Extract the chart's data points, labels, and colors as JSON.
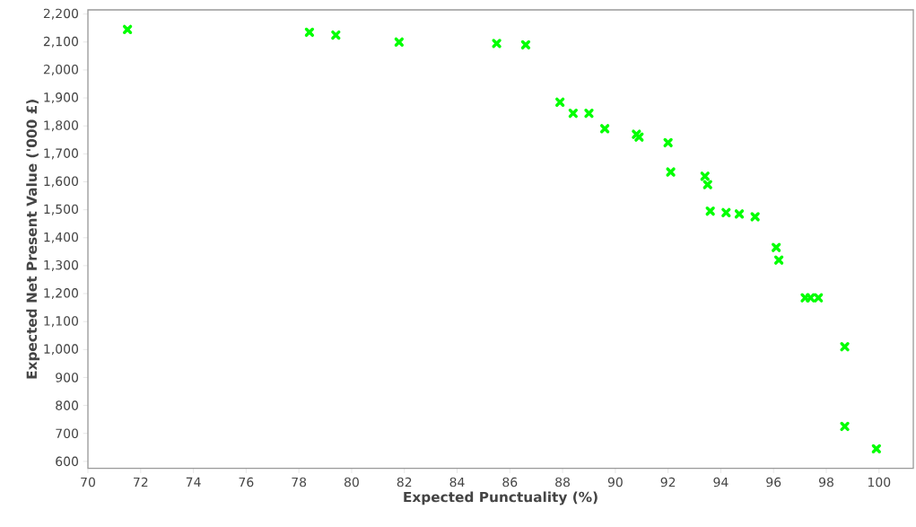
{
  "chart_data": {
    "type": "scatter",
    "xlabel": "Expected Punctuality (%)",
    "ylabel": "Expected Net Present Value ('000 £)",
    "x": [
      71.5,
      78.4,
      79.4,
      81.8,
      85.5,
      86.6,
      87.9,
      88.4,
      89.0,
      89.6,
      90.8,
      90.9,
      92.0,
      92.1,
      93.4,
      93.5,
      93.6,
      94.2,
      94.7,
      95.3,
      96.1,
      96.2,
      97.2,
      97.4,
      97.7,
      98.7,
      98.7,
      99.9
    ],
    "values": [
      2145,
      2135,
      2125,
      2100,
      2095,
      2090,
      1885,
      1845,
      1845,
      1790,
      1770,
      1760,
      1740,
      1635,
      1620,
      1590,
      1495,
      1490,
      1485,
      1475,
      1365,
      1320,
      1185,
      1185,
      1185,
      1010,
      725,
      645
    ],
    "color": "#00ff00",
    "marker": "cross",
    "grid": false,
    "xlim": [
      70,
      101.3
    ],
    "ylim": [
      575,
      2215
    ],
    "xticks": [
      70,
      72,
      74,
      76,
      78,
      80,
      82,
      84,
      86,
      88,
      90,
      92,
      94,
      96,
      98,
      100
    ],
    "yticks": [
      {
        "value": 600,
        "label": "600"
      },
      {
        "value": 700,
        "label": "700"
      },
      {
        "value": 800,
        "label": "800"
      },
      {
        "value": 900,
        "label": "900"
      },
      {
        "value": 1000,
        "label": "1,000"
      },
      {
        "value": 1100,
        "label": "1,100"
      },
      {
        "value": 1200,
        "label": "1,200"
      },
      {
        "value": 1300,
        "label": "1,300"
      },
      {
        "value": 1400,
        "label": "1,400"
      },
      {
        "value": 1500,
        "label": "1,500"
      },
      {
        "value": 1600,
        "label": "1,600"
      },
      {
        "value": 1700,
        "label": "1,700"
      },
      {
        "value": 1800,
        "label": "1,800"
      },
      {
        "value": 1900,
        "label": "1,900"
      },
      {
        "value": 2000,
        "label": "2,000"
      },
      {
        "value": 2100,
        "label": "2,100"
      },
      {
        "value": 2200,
        "label": "2,200"
      }
    ]
  }
}
